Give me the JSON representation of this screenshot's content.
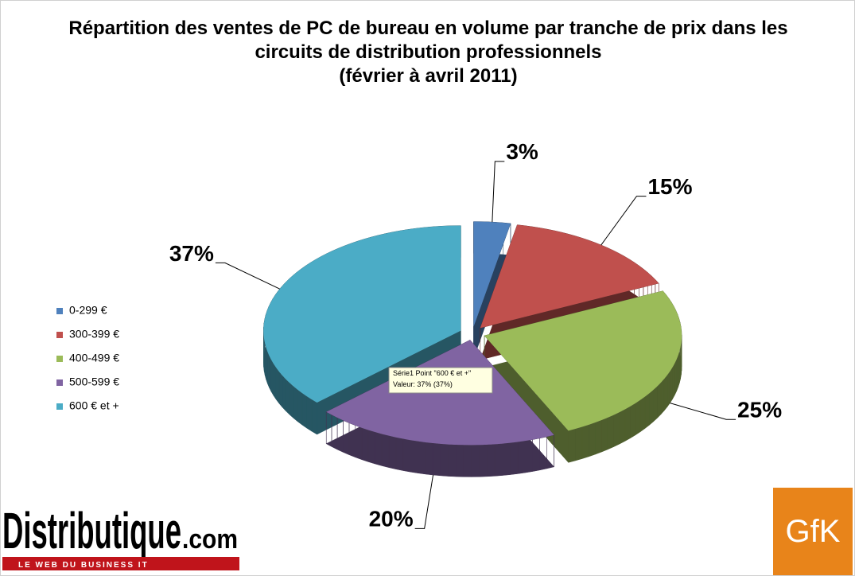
{
  "chart_data": {
    "type": "pie3d",
    "title": "Répartition des ventes de PC de bureau en volume par tranche de prix dans les circuits de distribution professionnels",
    "subtitle": "(février à avril 2011)",
    "categories": [
      "0-299 €",
      "300-399 €",
      "400-499 €",
      "500-599 €",
      "600 € et +"
    ],
    "values": [
      3,
      15,
      25,
      20,
      37
    ],
    "value_labels": [
      "3%",
      "15%",
      "25%",
      "20%",
      "37%"
    ],
    "colors": [
      "#4f81bd",
      "#c0504d",
      "#9bbb59",
      "#8064a2",
      "#4bacc6"
    ],
    "legend": "left"
  },
  "tooltip": {
    "line1": "Série1 Point \"600 € et +\"",
    "line2": "Valeur: 37% (37%)"
  },
  "logos": {
    "left": "Distributique",
    "left_suffix": ".com",
    "left_tagline": "LE WEB DU BUSINESS IT",
    "right": "GfK"
  }
}
